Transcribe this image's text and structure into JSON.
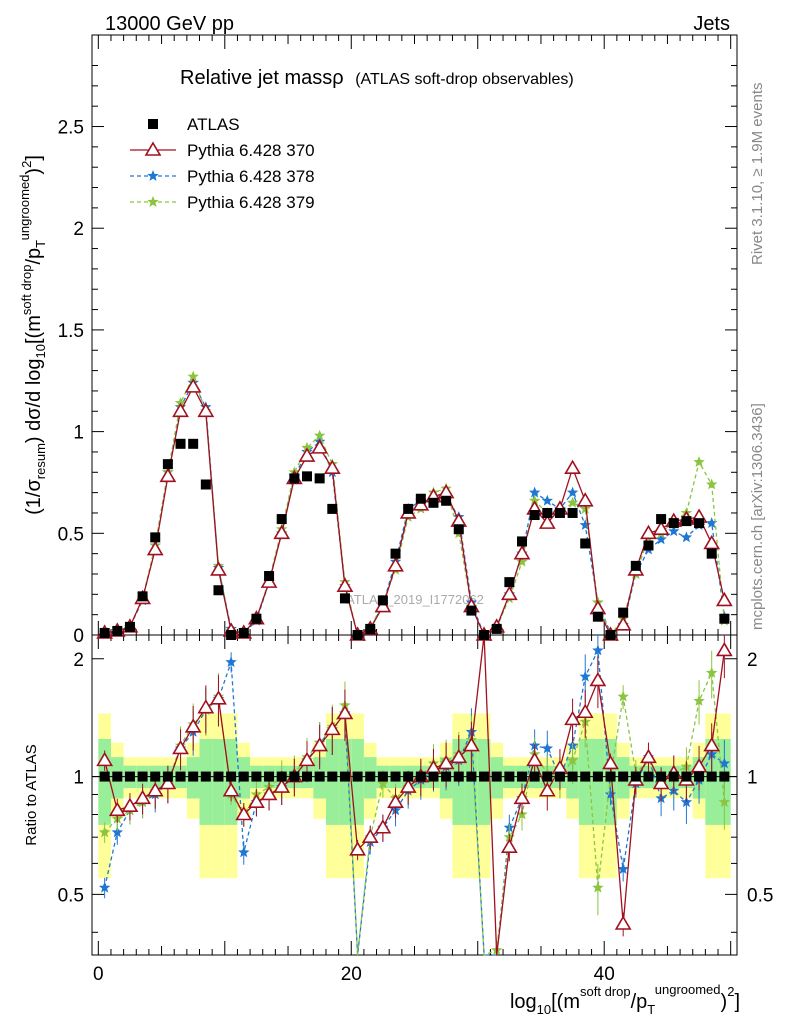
{
  "header": {
    "left": "13000 GeV pp",
    "right": "Jets"
  },
  "side_labels": {
    "rivet": "Rivet 3.1.10, ≥ 1.9M events",
    "mcplots": "mcplots.cern.ch [arXiv:1306.3436]"
  },
  "watermark": "ATLAS_2019_I1772062",
  "chart_data": {
    "type": "scatter",
    "title": "Relative jet massρ",
    "subtitle": "(ATLAS soft-drop observables)",
    "ylabel": "(1/σresum) dσ/d log10[(msoft drop/pTungroomed)2]",
    "xlabel": "log10[(msoft drop/pTungroomed)2]",
    "ratio_ylabel": "Ratio to ATLAS",
    "xlim": [
      -0.5,
      50.5
    ],
    "ylim": [
      0,
      2.95
    ],
    "ratio_ylim": [
      0.35,
      2.3
    ],
    "xticks": [
      0,
      20,
      40
    ],
    "yticks": [
      "0",
      "0.5",
      "1",
      "1.5",
      "2",
      "2.5"
    ],
    "ratio_yticks": [
      "0.5",
      "1",
      "2"
    ],
    "x": [
      0.5,
      1.5,
      2.5,
      3.5,
      4.5,
      5.5,
      6.5,
      7.5,
      8.5,
      9.5,
      10.5,
      11.5,
      12.5,
      13.5,
      14.5,
      15.5,
      16.5,
      17.5,
      18.5,
      19.5,
      20.5,
      21.5,
      22.5,
      23.5,
      24.5,
      25.5,
      26.5,
      27.5,
      28.5,
      29.5,
      30.5,
      31.5,
      32.5,
      33.5,
      34.5,
      35.5,
      36.5,
      37.5,
      38.5,
      39.5,
      40.5,
      41.5,
      42.5,
      43.5,
      44.5,
      45.5,
      46.5,
      47.5,
      48.5,
      49.5
    ],
    "series": [
      {
        "name": "ATLAS",
        "color": "#000000",
        "marker": "square",
        "values": [
          0.01,
          0.02,
          0.04,
          0.19,
          0.48,
          0.84,
          0.94,
          0.94,
          0.74,
          0.22,
          0.0,
          0.01,
          0.08,
          0.29,
          0.57,
          0.77,
          0.78,
          0.77,
          0.62,
          0.18,
          0.0,
          0.03,
          0.17,
          0.4,
          0.62,
          0.67,
          0.65,
          0.66,
          0.52,
          0.12,
          0.0,
          0.03,
          0.26,
          0.46,
          0.59,
          0.6,
          0.6,
          0.6,
          0.45,
          0.09,
          0.0,
          0.11,
          0.34,
          0.44,
          0.57,
          0.55,
          0.56,
          0.55,
          0.4,
          0.08
        ],
        "ratio": [
          1,
          1,
          1,
          1,
          1,
          1,
          1,
          1,
          1,
          1,
          1,
          1,
          1,
          1,
          1,
          1,
          1,
          1,
          1,
          1,
          1,
          1,
          1,
          1,
          1,
          1,
          1,
          1,
          1,
          1,
          1,
          1,
          1,
          1,
          1,
          1,
          1,
          1,
          1,
          1,
          1,
          1,
          1,
          1,
          1,
          1,
          1,
          1,
          1,
          1
        ]
      },
      {
        "name": "Pythia 6.428 370",
        "color": "#a01020",
        "marker": "triangle",
        "values": [
          0.01,
          0.02,
          0.04,
          0.18,
          0.42,
          0.78,
          1.1,
          1.22,
          1.1,
          0.32,
          0.02,
          0.01,
          0.08,
          0.26,
          0.5,
          0.77,
          0.88,
          0.92,
          0.82,
          0.24,
          0.0,
          0.03,
          0.14,
          0.34,
          0.6,
          0.64,
          0.68,
          0.7,
          0.56,
          0.14,
          0.0,
          0.04,
          0.2,
          0.4,
          0.62,
          0.55,
          0.62,
          0.82,
          0.66,
          0.13,
          0.0,
          0.05,
          0.32,
          0.5,
          0.52,
          0.56,
          0.57,
          0.58,
          0.45,
          0.17
        ],
        "ratio": [
          1.1,
          0.82,
          0.84,
          0.88,
          0.92,
          0.96,
          1.18,
          1.34,
          1.5,
          1.58,
          0.92,
          0.8,
          0.86,
          0.9,
          0.94,
          1.0,
          1.1,
          1.2,
          1.32,
          1.45,
          0.65,
          0.7,
          0.74,
          0.86,
          0.94,
          1.0,
          1.05,
          1.08,
          1.12,
          1.2,
          2.4,
          0.3,
          0.66,
          0.88,
          1.1,
          0.92,
          1.05,
          1.4,
          1.46,
          1.76,
          1.08,
          0.42,
          0.98,
          1.12,
          0.96,
          1.02,
          0.98,
          1.06,
          1.2,
          2.1
        ]
      },
      {
        "name": "Pythia 6.428 378",
        "color": "#1f77d4",
        "marker": "star",
        "values": [
          0.01,
          0.02,
          0.04,
          0.17,
          0.44,
          0.8,
          1.12,
          1.24,
          1.12,
          0.33,
          0.03,
          0.01,
          0.07,
          0.26,
          0.5,
          0.78,
          0.9,
          0.95,
          0.8,
          0.24,
          0.0,
          0.03,
          0.15,
          0.36,
          0.62,
          0.66,
          0.66,
          0.68,
          0.58,
          0.16,
          0.0,
          0.03,
          0.2,
          0.4,
          0.7,
          0.66,
          0.62,
          0.7,
          0.54,
          0.16,
          0.01,
          0.05,
          0.3,
          0.42,
          0.47,
          0.51,
          0.48,
          0.54,
          0.55,
          0.09
        ],
        "ratio": [
          0.52,
          0.72,
          0.82,
          0.86,
          0.9,
          0.96,
          1.18,
          1.3,
          1.48,
          1.58,
          1.96,
          0.64,
          0.86,
          0.9,
          0.94,
          1.0,
          1.1,
          1.22,
          1.32,
          1.45,
          0.3,
          0.68,
          0.74,
          0.82,
          0.92,
          0.98,
          1.04,
          1.06,
          1.1,
          1.3,
          0.3,
          0.34,
          0.74,
          0.88,
          1.2,
          1.18,
          1.0,
          1.2,
          1.8,
          2.1,
          0.9,
          0.58,
          0.96,
          1.12,
          0.88,
          0.92,
          0.86,
          0.98,
          1.14,
          1.08
        ]
      },
      {
        "name": "Pythia 6.428 379",
        "color": "#8bc53f",
        "marker": "star",
        "values": [
          0.01,
          0.02,
          0.04,
          0.18,
          0.44,
          0.8,
          1.14,
          1.27,
          1.1,
          0.34,
          0.02,
          0.01,
          0.08,
          0.27,
          0.52,
          0.8,
          0.92,
          0.98,
          0.84,
          0.26,
          0.0,
          0.03,
          0.16,
          0.32,
          0.58,
          0.62,
          0.7,
          0.72,
          0.5,
          0.14,
          0.0,
          0.04,
          0.18,
          0.36,
          0.66,
          0.6,
          0.6,
          0.65,
          0.62,
          0.16,
          0.0,
          0.08,
          0.3,
          0.48,
          0.5,
          0.56,
          0.6,
          0.85,
          0.74,
          0.07
        ],
        "ratio": [
          0.72,
          0.78,
          0.82,
          0.86,
          0.92,
          0.96,
          1.2,
          1.36,
          1.48,
          1.6,
          0.9,
          0.8,
          0.9,
          0.94,
          1.0,
          1.02,
          1.12,
          1.22,
          1.34,
          1.52,
          0.3,
          0.7,
          0.96,
          0.88,
          0.94,
          1.0,
          1.08,
          1.1,
          1.14,
          1.24,
          0.3,
          0.36,
          0.7,
          0.8,
          1.14,
          1.02,
          1.0,
          1.1,
          1.38,
          0.52,
          1.0,
          1.6,
          1.02,
          1.1,
          0.96,
          1.02,
          1.06,
          1.56,
          1.84,
          0.86
        ]
      }
    ]
  }
}
